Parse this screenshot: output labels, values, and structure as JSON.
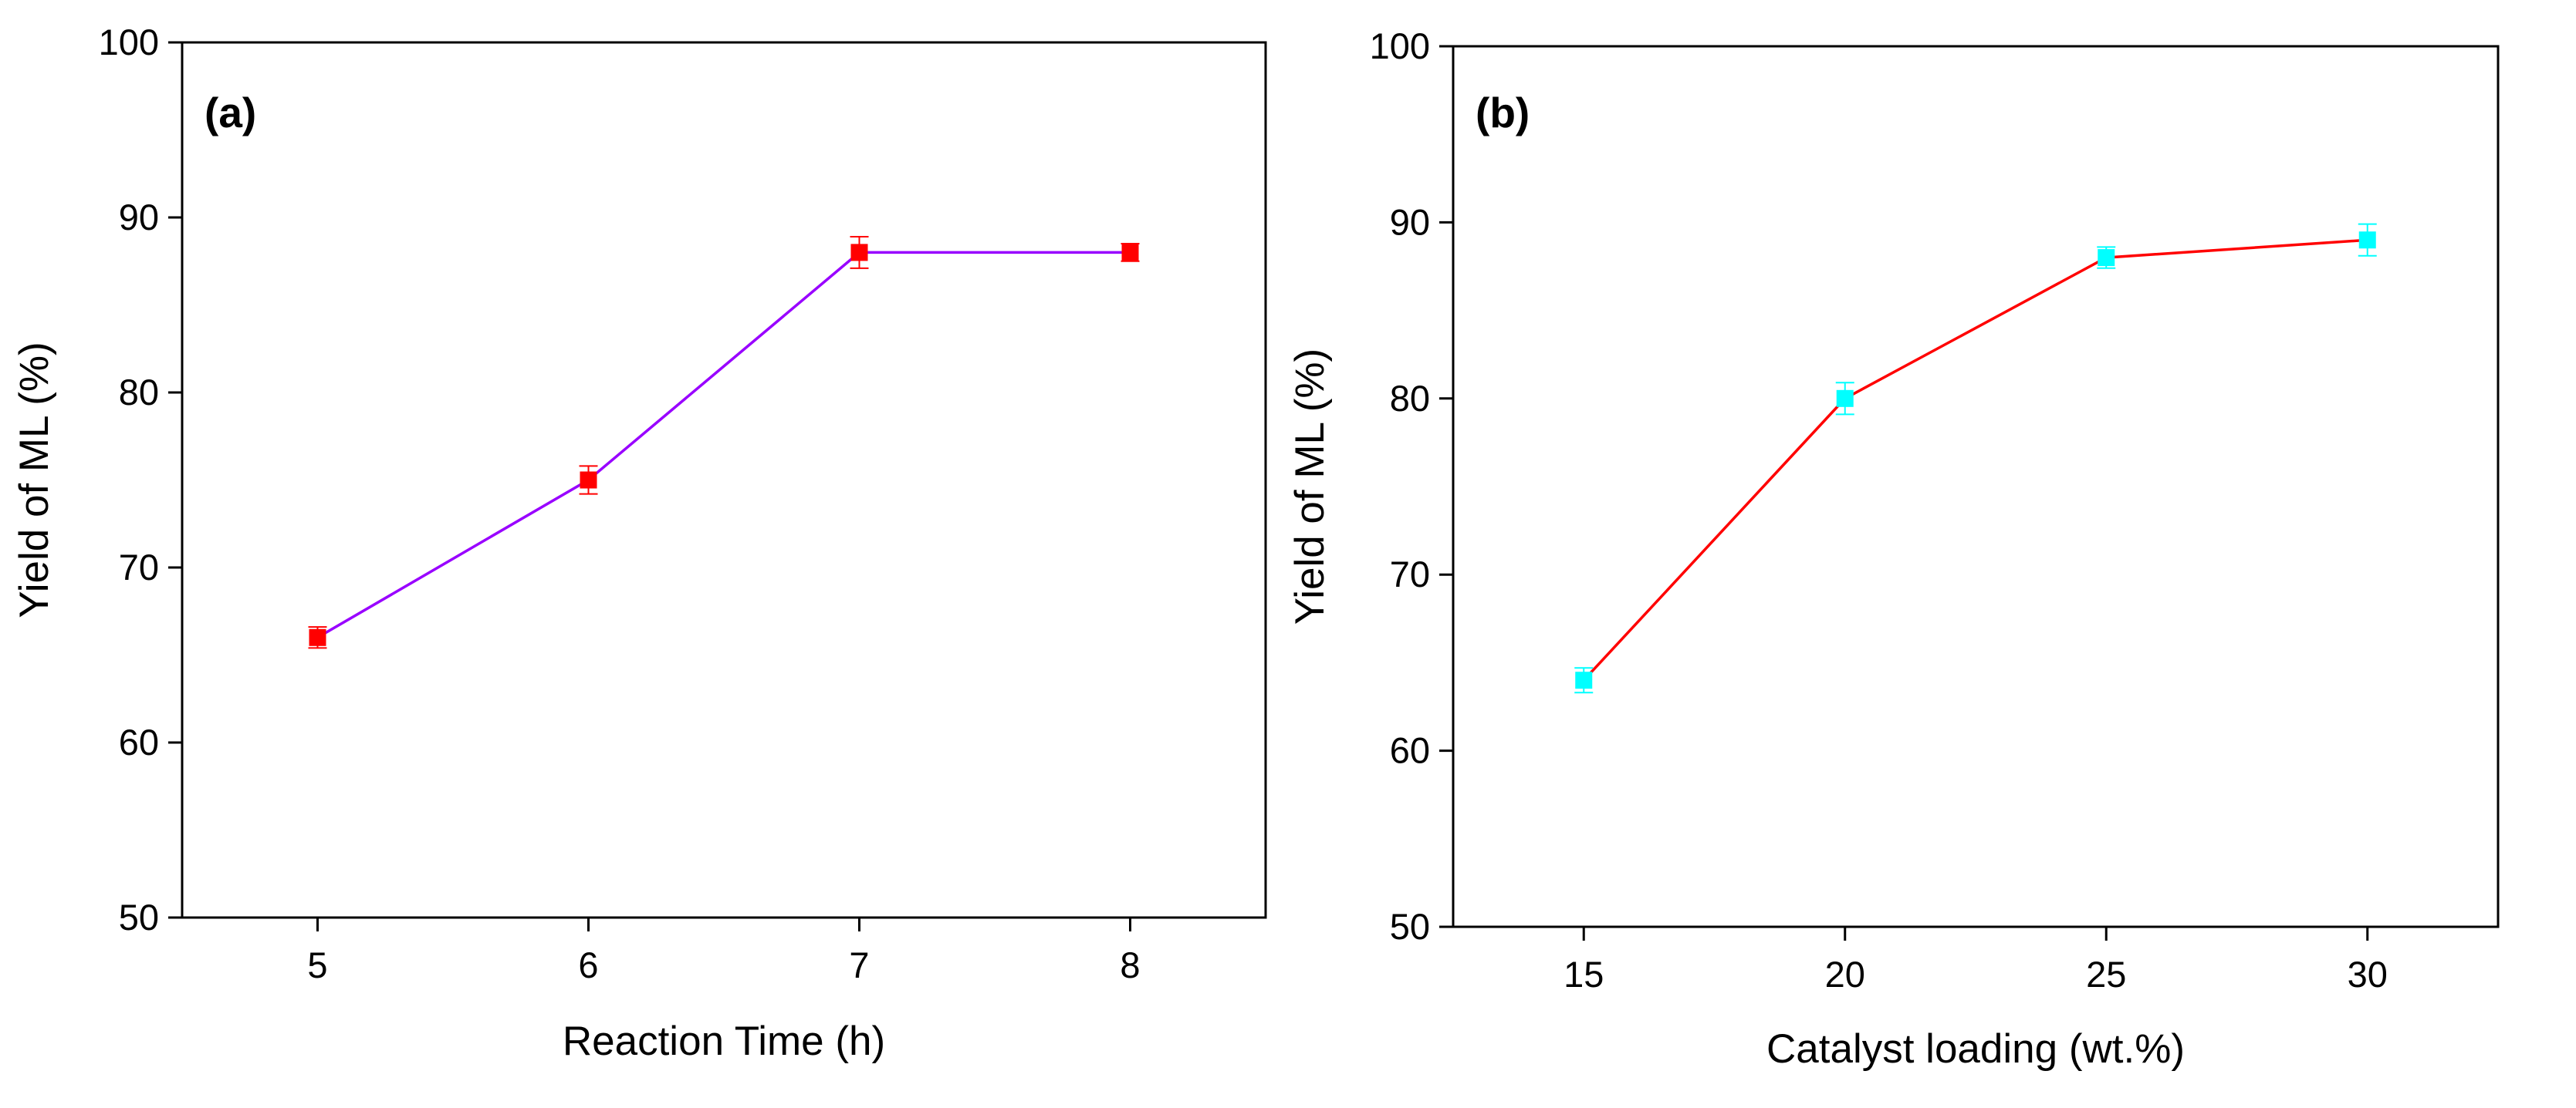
{
  "chart_data": [
    {
      "type": "line",
      "panel_label": "(a)",
      "xlabel": "Reaction Time (h)",
      "ylabel": "Yield of ML (%)",
      "xlim": [
        4.5,
        8.5
      ],
      "ylim": [
        50,
        100
      ],
      "x_ticks": [
        "5",
        "6",
        "7",
        "8"
      ],
      "y_ticks": [
        "50",
        "60",
        "70",
        "80",
        "90",
        "100"
      ],
      "grid": false,
      "legend": "none",
      "line_color": "#9900ff",
      "marker_color": "#ff0000",
      "series": [
        {
          "name": "Yield of ML",
          "x": [
            5,
            6,
            7,
            8
          ],
          "y": [
            66,
            75,
            88,
            88
          ],
          "error": [
            0.6,
            0.8,
            0.9,
            0.5
          ]
        }
      ]
    },
    {
      "type": "line",
      "panel_label": "(b)",
      "xlabel": "Catalyst loading (wt.%)",
      "ylabel": "Yield of ML (%)",
      "xlim": [
        12.5,
        32.5
      ],
      "ylim": [
        50,
        100
      ],
      "x_ticks": [
        "15",
        "20",
        "25",
        "30"
      ],
      "y_ticks": [
        "50",
        "60",
        "70",
        "80",
        "90",
        "100"
      ],
      "grid": false,
      "legend": "none",
      "line_color": "#ff0000",
      "marker_color": "#00ffff",
      "series": [
        {
          "name": "Yield of ML",
          "x": [
            15,
            20,
            25,
            30
          ],
          "y": [
            64,
            80,
            88,
            89
          ],
          "error": [
            0.7,
            0.9,
            0.6,
            0.9
          ]
        }
      ]
    }
  ]
}
